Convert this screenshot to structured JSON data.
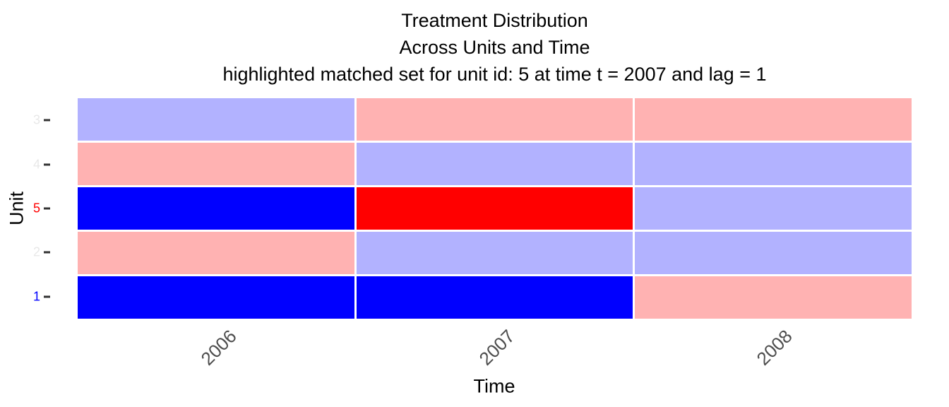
{
  "figure": {
    "title_lines": [
      "Treatment Distribution",
      "Across Units and Time",
      "highlighted matched set for unit id: 5 at time t = 2007 and lag = 1"
    ],
    "x_axis_title": "Time",
    "y_axis_title": "Unit"
  },
  "chart_data": {
    "type": "heatmap",
    "title": "Treatment Distribution / Across Units and Time / highlighted matched set for unit id: 5 at time t = 2007 and lag = 1",
    "xlabel": "Time",
    "ylabel": "Unit",
    "x_categories": [
      "2006",
      "2007",
      "2008"
    ],
    "y_categories_top_to_bottom": [
      "3",
      "4",
      "5",
      "2",
      "1"
    ],
    "legend": "none",
    "grid_lines": "off",
    "palette": {
      "control_faded": "#b2b2ff",
      "treated_faded": "#ffb2b2",
      "control_highlighted": "#0000ff",
      "treated_highlighted": "#ff0000"
    },
    "cells": [
      {
        "unit": "3",
        "values": [
          "control_faded",
          "treated_faded",
          "treated_faded"
        ]
      },
      {
        "unit": "4",
        "values": [
          "treated_faded",
          "control_faded",
          "control_faded"
        ]
      },
      {
        "unit": "5",
        "values": [
          "control_highlighted",
          "treated_highlighted",
          "control_faded"
        ]
      },
      {
        "unit": "2",
        "values": [
          "treated_faded",
          "control_faded",
          "control_faded"
        ]
      },
      {
        "unit": "1",
        "values": [
          "control_highlighted",
          "control_highlighted",
          "treated_faded"
        ]
      }
    ],
    "y_tick_label_colors": [
      "#e8e8e8",
      "#e8e8e8",
      "#ff0000",
      "#e8e8e8",
      "#0000ff"
    ],
    "x_tick_label_color": "#4d4d4d",
    "tick_mark_color": "#333333",
    "background_color": "#ffffff"
  }
}
